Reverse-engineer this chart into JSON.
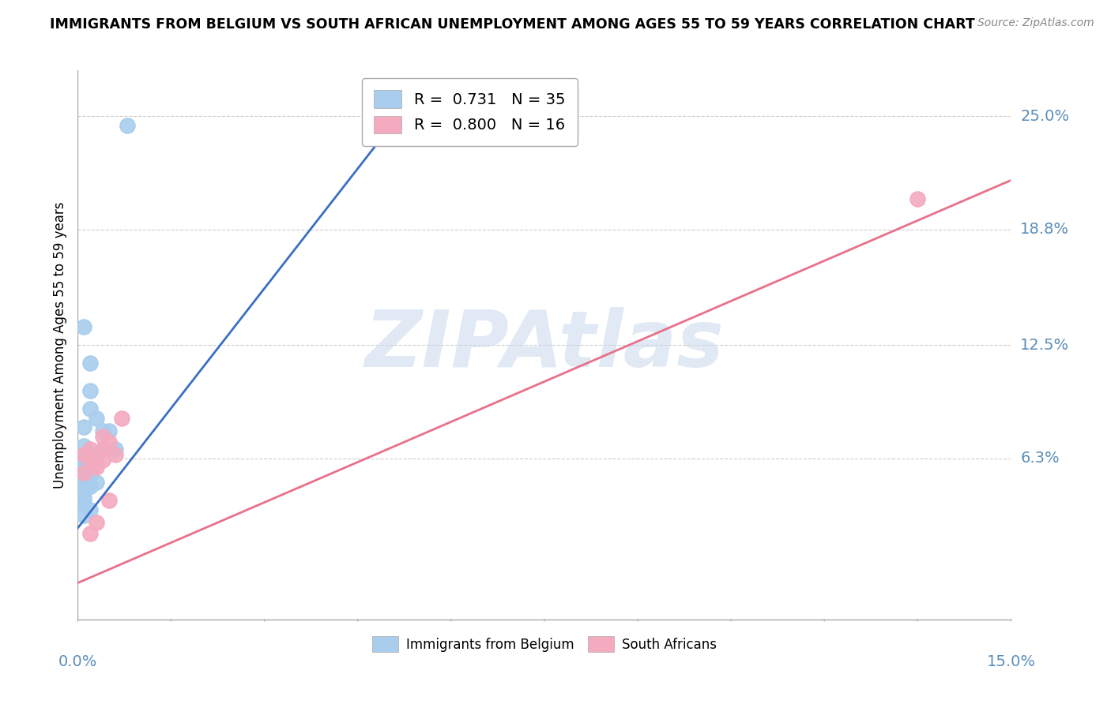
{
  "title": "IMMIGRANTS FROM BELGIUM VS SOUTH AFRICAN UNEMPLOYMENT AMONG AGES 55 TO 59 YEARS CORRELATION CHART",
  "source": "Source: ZipAtlas.com",
  "ylabel": "Unemployment Among Ages 55 to 59 years",
  "xlim": [
    0.0,
    0.15
  ],
  "ylim": [
    -0.025,
    0.275
  ],
  "yticks": [
    0.063,
    0.125,
    0.188,
    0.25
  ],
  "ytick_labels": [
    "6.3%",
    "12.5%",
    "18.8%",
    "25.0%"
  ],
  "xtick_positions": [
    0.0,
    0.015,
    0.03,
    0.045,
    0.06,
    0.075,
    0.09,
    0.105,
    0.12,
    0.135,
    0.15
  ],
  "xleft_label": "0.0%",
  "xright_label": "15.0%",
  "blue_R": "0.731",
  "blue_N": "35",
  "pink_R": "0.800",
  "pink_N": "16",
  "blue_label": "Immigrants from Belgium",
  "pink_label": "South Africans",
  "blue_color": "#A8CDED",
  "pink_color": "#F4AABF",
  "blue_line_color": "#3B6FC4",
  "pink_line_color": "#E8708A",
  "blue_scatter_x": [
    0.008,
    0.001,
    0.002,
    0.002,
    0.003,
    0.002,
    0.001,
    0.001,
    0.002,
    0.001,
    0.001,
    0.0015,
    0.003,
    0.001,
    0.001,
    0.001,
    0.0005,
    0.0005,
    0.001,
    0.002,
    0.004,
    0.005,
    0.004,
    0.006,
    0.001,
    0.001,
    0.002,
    0.001,
    0.003,
    0.001,
    0.001,
    0.002,
    0.001,
    0.001,
    0.002
  ],
  "blue_scatter_y": [
    0.245,
    0.135,
    0.115,
    0.09,
    0.085,
    0.1,
    0.08,
    0.07,
    0.065,
    0.065,
    0.065,
    0.065,
    0.065,
    0.06,
    0.06,
    0.058,
    0.056,
    0.055,
    0.054,
    0.054,
    0.078,
    0.078,
    0.068,
    0.068,
    0.048,
    0.048,
    0.048,
    0.045,
    0.05,
    0.042,
    0.04,
    0.035,
    0.032,
    0.038,
    0.048
  ],
  "pink_scatter_x": [
    0.001,
    0.002,
    0.001,
    0.003,
    0.002,
    0.004,
    0.004,
    0.003,
    0.006,
    0.005,
    0.003,
    0.002,
    0.004,
    0.005,
    0.007,
    0.135
  ],
  "pink_scatter_y": [
    0.065,
    0.062,
    0.055,
    0.06,
    0.068,
    0.068,
    0.062,
    0.058,
    0.065,
    0.04,
    0.028,
    0.022,
    0.075,
    0.072,
    0.085,
    0.205
  ],
  "blue_line_x": [
    0.0,
    0.055
  ],
  "blue_line_y": [
    0.025,
    0.265
  ],
  "pink_line_x": [
    0.0,
    0.15
  ],
  "pink_line_y": [
    -0.005,
    0.215
  ],
  "watermark_text": "ZIPAtlas",
  "watermark_color": "#C8D8EC",
  "background_color": "#FFFFFF",
  "grid_color": "#CCCCCC",
  "title_color": "#000000",
  "axis_label_color": "#000000",
  "tick_label_color": "#5B8DB8",
  "source_color": "#888888",
  "legend_text_color": "#000000"
}
